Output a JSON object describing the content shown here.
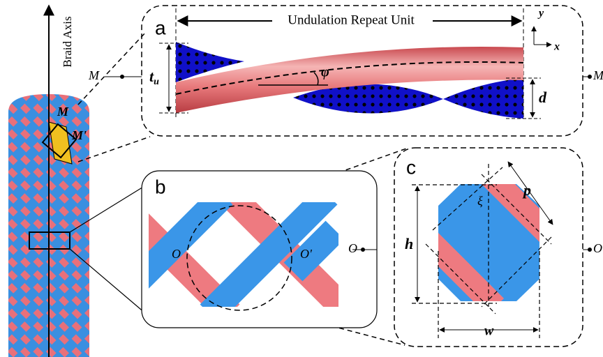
{
  "axis_label": "Braid Axis",
  "markers": {
    "m_left": "M",
    "m_right": "M",
    "m_tube": "M",
    "m_prime": "M'",
    "o_left": "O",
    "o_right": "O"
  },
  "panel_a": {
    "label": "a",
    "title": "Undulation Repeat Unit",
    "axis_y": "y",
    "axis_x": "x",
    "thickness": "t",
    "thickness_sub": "u",
    "angle": "φ",
    "depth": "d"
  },
  "panel_b": {
    "label": "b",
    "center_left": "O",
    "center_right": "O'"
  },
  "panel_c": {
    "label": "c",
    "angle": "ξ",
    "pitch": "p",
    "height": "h",
    "width": "w"
  }
}
